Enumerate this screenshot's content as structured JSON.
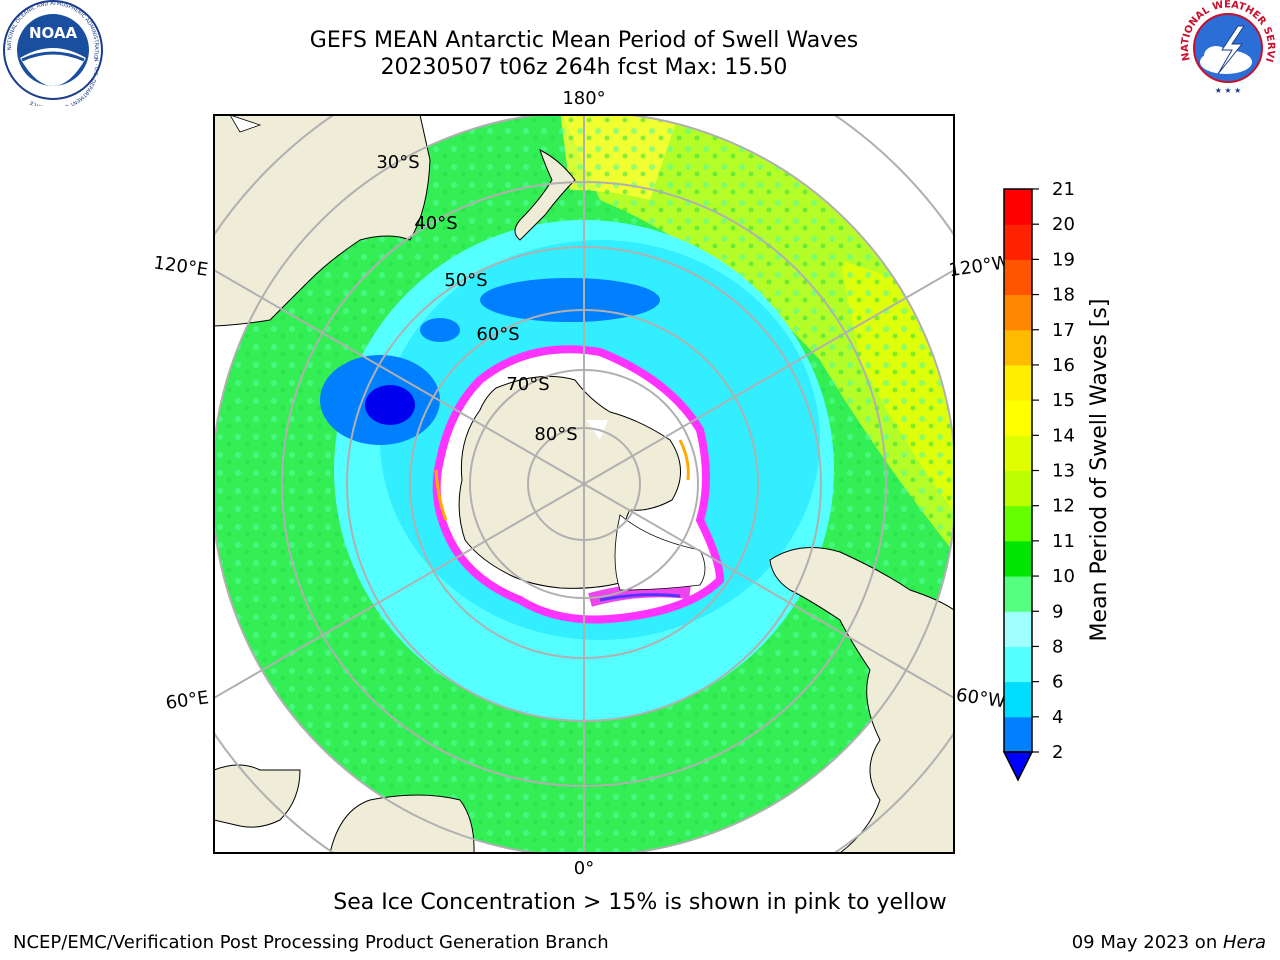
{
  "header": {
    "title_line1": "GEFS MEAN Antarctic Mean Period of Swell Waves",
    "title_line2": "20230507 t06z 264h fcst   Max: 15.50"
  },
  "logos": {
    "left": {
      "text": "NOAA",
      "icon": "noaa-logo-icon",
      "ring_text": "NATIONAL OCEANIC AND ATMOSPHERIC ADMINISTRATION · U.S. DEPARTMENT OF COMMERCE"
    },
    "right": {
      "icon": "nws-logo-icon",
      "ring_text": "NATIONAL WEATHER SERVICE"
    }
  },
  "chart_data": {
    "type": "heatmap",
    "projection": "south-polar-stereographic",
    "longitude_labels": [
      "180°",
      "120°E",
      "120°W",
      "60°E",
      "60°W",
      "0°"
    ],
    "latitude_labels": [
      "30°S",
      "40°S",
      "50°S",
      "60°S",
      "70°S",
      "80°S"
    ],
    "colorbar": {
      "label": "Mean Period of Swell Waves [s]",
      "ticks": [
        2,
        4,
        6,
        8,
        9,
        10,
        11,
        12,
        13,
        14,
        15,
        16,
        17,
        18,
        19,
        20,
        21
      ],
      "colors": [
        "#0080ff",
        "#00ddff",
        "#55ffff",
        "#a0ffff",
        "#55ff80",
        "#00e600",
        "#66ff00",
        "#bbff00",
        "#dfff00",
        "#ffff00",
        "#ffee00",
        "#ffbb00",
        "#ff8800",
        "#ff5500",
        "#ff2200",
        "#ff0000"
      ],
      "extend_min_color": "#0000ff"
    },
    "max_value": 15.5,
    "grid": true
  },
  "caption": "Sea Ice Concentration > 15% is shown in pink to yellow",
  "footer": {
    "left": "NCEP/EMC/Verification Post Processing Product Generation Branch",
    "right_date": "09 May 2023 on ",
    "right_machine": "Hera"
  }
}
